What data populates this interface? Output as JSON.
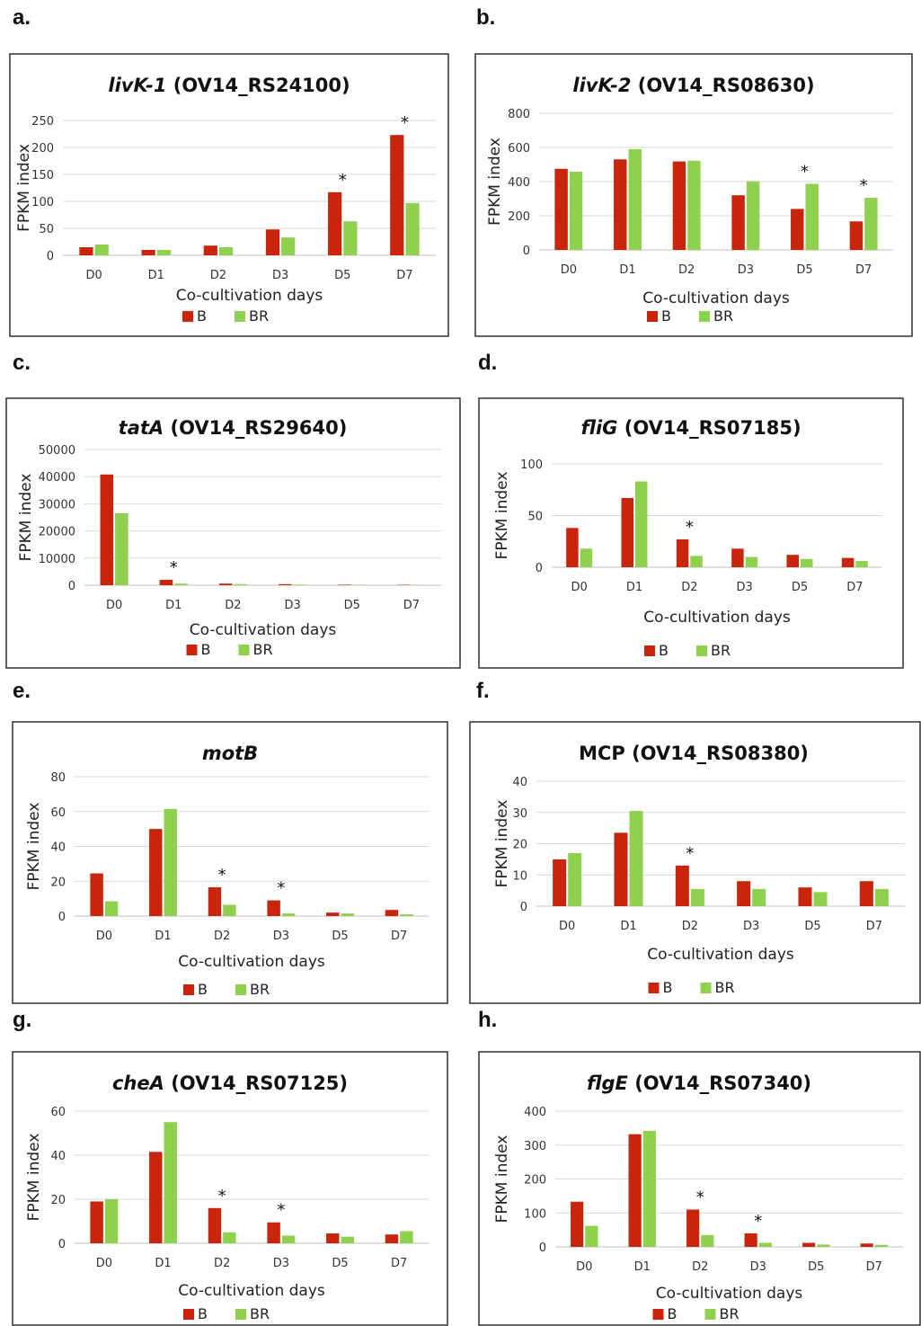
{
  "colors": {
    "B": "#c9250d",
    "BR": "#8fd14f",
    "grid": "#d9d9d9",
    "frame": "#222222"
  },
  "panels": [
    {
      "letter": "a."
    },
    {
      "letter": "b."
    },
    {
      "letter": "c."
    },
    {
      "letter": "d."
    },
    {
      "letter": "e."
    },
    {
      "letter": "f."
    },
    {
      "letter": "g."
    },
    {
      "letter": "h."
    }
  ],
  "chart_data": [
    {
      "type": "bar",
      "title_italic": "livK-1",
      "title_rest": " (OV14_RS24100)",
      "categories": [
        "D0",
        "D1",
        "D2",
        "D3",
        "D5",
        "D7"
      ],
      "series": [
        {
          "name": "B",
          "values": [
            15,
            10,
            18,
            48,
            117,
            223
          ]
        },
        {
          "name": "BR",
          "values": [
            20,
            10,
            15,
            33,
            63,
            97
          ]
        }
      ],
      "significant": [
        false,
        false,
        false,
        false,
        true,
        true
      ],
      "star_label": "*",
      "xlabel": "Co-cultivation days",
      "ylabel": "FPKM index",
      "ylim": [
        0,
        250
      ],
      "yticks": [
        0,
        50,
        100,
        150,
        200,
        250
      ],
      "grid": true,
      "legend": "bottom"
    },
    {
      "type": "bar",
      "title_italic": "livK-2",
      "title_rest": " (OV14_RS08630)",
      "categories": [
        "D0",
        "D1",
        "D2",
        "D3",
        "D5",
        "D7"
      ],
      "series": [
        {
          "name": "B",
          "values": [
            475,
            530,
            518,
            320,
            240,
            167
          ]
        },
        {
          "name": "BR",
          "values": [
            458,
            590,
            522,
            402,
            387,
            305
          ]
        }
      ],
      "significant": [
        false,
        false,
        false,
        false,
        true,
        true
      ],
      "star_label": "*",
      "xlabel": "Co-cultivation days",
      "ylabel": "FPKM index",
      "ylim": [
        0,
        800
      ],
      "yticks": [
        0,
        200,
        400,
        600,
        800
      ],
      "grid": true,
      "legend": "bottom"
    },
    {
      "type": "bar",
      "title_italic": "tatA",
      "title_rest": " (OV14_RS29640)",
      "categories": [
        "D0",
        "D1",
        "D2",
        "D3",
        "D5",
        "D7"
      ],
      "series": [
        {
          "name": "B",
          "values": [
            40800,
            2000,
            600,
            400,
            200,
            150
          ]
        },
        {
          "name": "BR",
          "values": [
            26500,
            600,
            400,
            250,
            100,
            80
          ]
        }
      ],
      "significant": [
        false,
        true,
        false,
        false,
        false,
        false
      ],
      "star_label": "*",
      "xlabel": "Co-cultivation days",
      "ylabel": "FPKM index",
      "ylim": [
        0,
        50000
      ],
      "yticks": [
        0,
        10000,
        20000,
        30000,
        40000,
        50000
      ],
      "grid": true,
      "legend": "bottom"
    },
    {
      "type": "bar",
      "title_italic": "fliG",
      "title_rest": " (OV14_RS07185)",
      "categories": [
        "D0",
        "D1",
        "D2",
        "D3",
        "D5",
        "D7"
      ],
      "series": [
        {
          "name": "B",
          "values": [
            38,
            67,
            27,
            18,
            12,
            9
          ]
        },
        {
          "name": "BR",
          "values": [
            18,
            83,
            11,
            10,
            8,
            6
          ]
        }
      ],
      "significant": [
        false,
        false,
        true,
        false,
        false,
        false
      ],
      "star_label": "*",
      "xlabel": "Co-cultivation days",
      "ylabel": "FPKM index",
      "ylim": [
        0,
        100
      ],
      "yticks": [
        0,
        50,
        100
      ],
      "grid": true,
      "legend": "bottom"
    },
    {
      "type": "bar",
      "title_italic": "motB",
      "title_rest": "",
      "categories": [
        "D0",
        "D1",
        "D2",
        "D3",
        "D5",
        "D7"
      ],
      "series": [
        {
          "name": "B",
          "values": [
            24.5,
            50,
            16.5,
            9,
            2,
            3.5
          ]
        },
        {
          "name": "BR",
          "values": [
            8.5,
            61.5,
            6.5,
            1.5,
            1.5,
            1
          ]
        }
      ],
      "significant": [
        false,
        false,
        true,
        true,
        false,
        false
      ],
      "star_label": "*",
      "xlabel": "Co-cultivation days",
      "ylabel": "FPKM index",
      "ylim": [
        0,
        80
      ],
      "yticks": [
        0,
        20,
        40,
        60,
        80
      ],
      "grid": true,
      "legend": "bottom"
    },
    {
      "type": "bar",
      "title_italic": "",
      "title_rest": "MCP (OV14_RS08380)",
      "categories": [
        "D0",
        "D1",
        "D2",
        "D3",
        "D5",
        "D7"
      ],
      "series": [
        {
          "name": "B",
          "values": [
            15,
            23.5,
            13,
            8,
            6,
            8
          ]
        },
        {
          "name": "BR",
          "values": [
            17,
            30.5,
            5.5,
            5.5,
            4.5,
            5.5
          ]
        }
      ],
      "significant": [
        false,
        false,
        true,
        false,
        false,
        false
      ],
      "star_label": "*",
      "xlabel": "Co-cultivation days",
      "ylabel": "FPKM index",
      "ylim": [
        0,
        40
      ],
      "yticks": [
        0,
        10,
        20,
        30,
        40
      ],
      "grid": true,
      "legend": "bottom"
    },
    {
      "type": "bar",
      "title_italic": "cheA",
      "title_rest": " (OV14_RS07125)",
      "categories": [
        "D0",
        "D1",
        "D2",
        "D3",
        "D5",
        "D7"
      ],
      "series": [
        {
          "name": "B",
          "values": [
            19,
            41.5,
            16,
            9.5,
            4.5,
            4
          ]
        },
        {
          "name": "BR",
          "values": [
            20,
            55,
            5,
            3.5,
            3,
            5.5
          ]
        }
      ],
      "significant": [
        false,
        false,
        true,
        true,
        false,
        false
      ],
      "star_label": "*",
      "xlabel": "Co-cultivation days",
      "ylabel": "FPKM index",
      "ylim": [
        0,
        60
      ],
      "yticks": [
        0,
        20,
        40,
        60
      ],
      "grid": true,
      "legend": "bottom"
    },
    {
      "type": "bar",
      "title_italic": "flgE",
      "title_rest": " (OV14_RS07340)",
      "categories": [
        "D0",
        "D1",
        "D2",
        "D3",
        "D5",
        "D7"
      ],
      "series": [
        {
          "name": "B",
          "values": [
            133,
            332,
            110,
            40,
            12,
            10
          ]
        },
        {
          "name": "BR",
          "values": [
            62,
            342,
            35,
            12,
            7,
            6
          ]
        }
      ],
      "significant": [
        false,
        false,
        true,
        true,
        false,
        false
      ],
      "star_label": "*",
      "xlabel": "Co-cultivation days",
      "ylabel": "FPKM index",
      "ylim": [
        0,
        400
      ],
      "yticks": [
        0,
        100,
        200,
        300,
        400
      ],
      "grid": true,
      "legend": "bottom"
    }
  ]
}
